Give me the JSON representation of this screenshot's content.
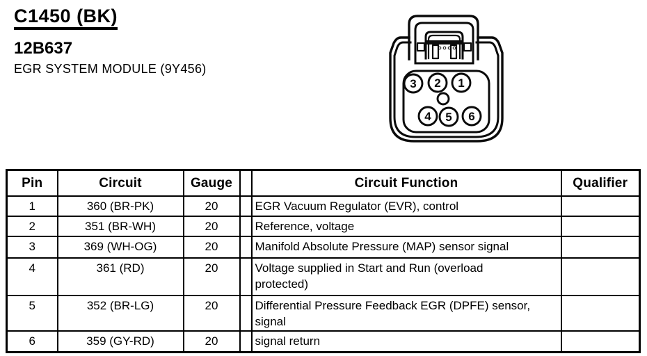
{
  "colors": {
    "ink": "#000000",
    "paper": "#ffffff"
  },
  "header": {
    "connector_id": "C1450 (BK)",
    "part_number": "12B637",
    "component_name": "EGR SYSTEM MODULE (9Y456)"
  },
  "connector": {
    "pins_top_row": [
      "3",
      "2",
      "1"
    ],
    "pins_bottom_row": [
      "4",
      "5",
      "6"
    ]
  },
  "table": {
    "columns": [
      "Pin",
      "Circuit",
      "Gauge",
      "Circuit Function",
      "Qualifier"
    ],
    "rows": [
      {
        "pin": "1",
        "circuit": "360 (BR-PK)",
        "gauge": "20",
        "function": "EGR Vacuum Regulator (EVR), control",
        "qualifier": ""
      },
      {
        "pin": "2",
        "circuit": "351 (BR-WH)",
        "gauge": "20",
        "function": "Reference, voltage",
        "qualifier": ""
      },
      {
        "pin": "3",
        "circuit": "369 (WH-OG)",
        "gauge": "20",
        "function": "Manifold Absolute Pressure (MAP) sensor signal",
        "qualifier": ""
      },
      {
        "pin": "4",
        "circuit": "361 (RD)",
        "gauge": "20",
        "function": "Voltage supplied in Start and Run (overload protected)",
        "qualifier": ""
      },
      {
        "pin": "5",
        "circuit": "352 (BR-LG)",
        "gauge": "20",
        "function": "Differential Pressure Feedback EGR (DPFE) sensor, signal",
        "qualifier": ""
      },
      {
        "pin": "6",
        "circuit": "359 (GY-RD)",
        "gauge": "20",
        "function": "signal return",
        "qualifier": ""
      }
    ]
  }
}
